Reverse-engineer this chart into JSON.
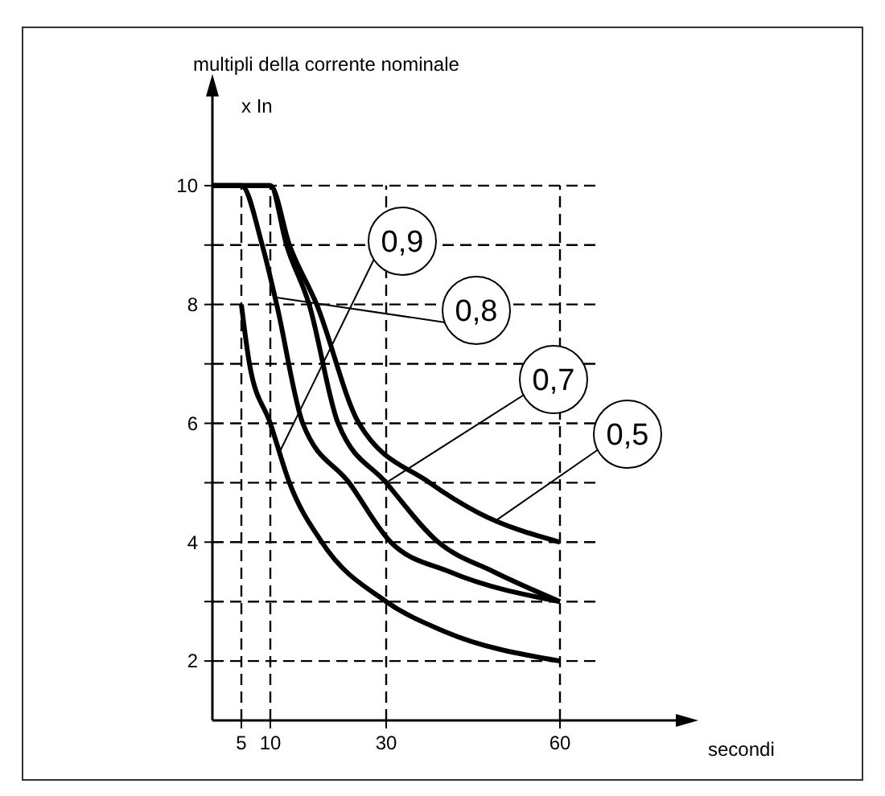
{
  "chart_data": {
    "type": "line",
    "ylabel": "multipli della corrente nominale",
    "xlabel": "secondi",
    "annotations": [
      "x In"
    ],
    "xlim": [
      0,
      80
    ],
    "xticks": [
      5,
      10,
      30,
      60
    ],
    "ylim": [
      1,
      11.5
    ],
    "yticks": [
      2,
      {
        "value": 3,
        "label": null
      },
      4,
      {
        "value": 5,
        "label": null
      },
      6,
      {
        "value": 7,
        "label": null
      },
      8,
      {
        "value": 9,
        "label": null
      },
      10
    ],
    "grid": true,
    "line_style": "solid",
    "marker": "none",
    "series": [
      {
        "name": "0,9",
        "color": "#000000",
        "x": [
          5,
          6.4,
          10,
          13.3,
          18.9,
          30,
          40,
          60
        ],
        "values": [
          8,
          7,
          6,
          5,
          4,
          3,
          2.5,
          2
        ]
      },
      {
        "name": "0,8",
        "color": "#000000",
        "x": [
          0,
          5,
          8.6,
          11.1,
          15.6,
          23.6,
          30.8,
          41,
          60
        ],
        "values": [
          10,
          10,
          9,
          8,
          6,
          5,
          4,
          3.5,
          3
        ]
      },
      {
        "name": "0,7",
        "color": "#000000",
        "x": [
          0,
          10,
          12.8,
          16.7,
          21.7,
          30,
          39,
          48.6,
          60
        ],
        "values": [
          10,
          10,
          9,
          8,
          6,
          5,
          4,
          3.5,
          3
        ]
      },
      {
        "name": "0,5",
        "color": "#000000",
        "x": [
          0,
          10,
          13.3,
          18,
          25.3,
          37.5,
          45.8,
          60
        ],
        "values": [
          10,
          10,
          9,
          8,
          6,
          5,
          4.5,
          4
        ]
      }
    ]
  }
}
